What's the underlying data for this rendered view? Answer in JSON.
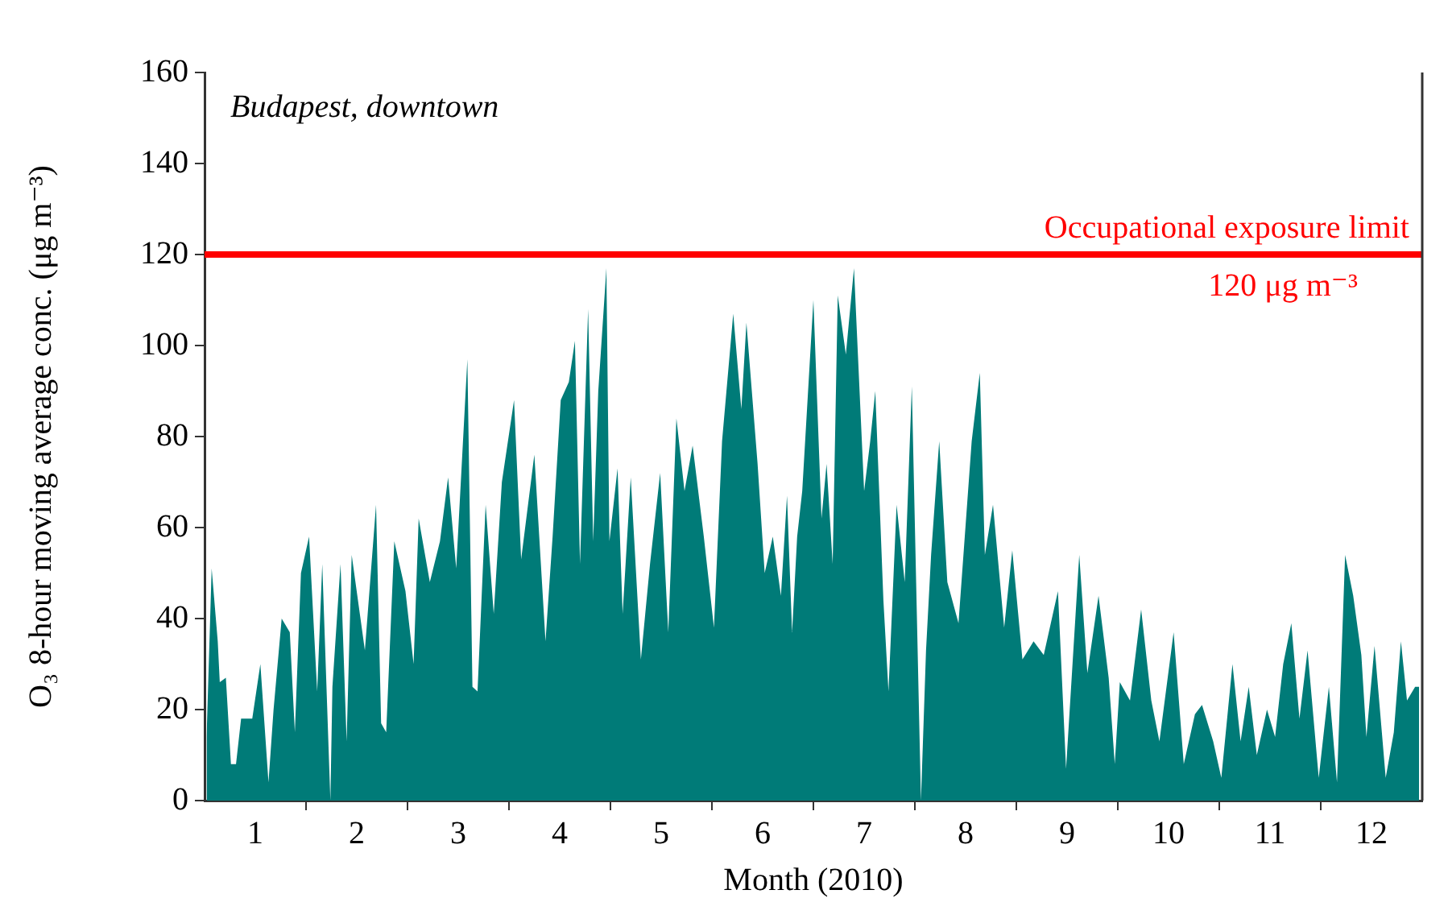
{
  "chart_data": {
    "type": "area",
    "ylabel": "O₃ 8-hour moving average conc. (μg m⁻³)",
    "xlabel": "Month (2010)",
    "annotations": [
      "Budapest, downtown",
      {
        "text": "120 μg m⁻³",
        "y": 120
      }
    ],
    "ref_lines": [
      {
        "axis": "y",
        "value": 120,
        "label": "Occupational exposure limit",
        "color": "#ff0000"
      }
    ],
    "color": "#007b78",
    "legend": false,
    "grid": false,
    "xlim": [
      0,
      12
    ],
    "xticks": [
      {
        "value": 0.5,
        "label": "1"
      },
      {
        "value": 1,
        "label": null
      },
      {
        "value": 1.5,
        "label": "2"
      },
      {
        "value": 2,
        "label": null
      },
      {
        "value": 2.5,
        "label": "3"
      },
      {
        "value": 3,
        "label": null
      },
      {
        "value": 3.5,
        "label": "4"
      },
      {
        "value": 4,
        "label": null
      },
      {
        "value": 4.5,
        "label": "5"
      },
      {
        "value": 5,
        "label": null
      },
      {
        "value": 5.5,
        "label": "6"
      },
      {
        "value": 6,
        "label": null
      },
      {
        "value": 6.5,
        "label": "7"
      },
      {
        "value": 7,
        "label": null
      },
      {
        "value": 7.5,
        "label": "8"
      },
      {
        "value": 8,
        "label": null
      },
      {
        "value": 8.5,
        "label": "9"
      },
      {
        "value": 9,
        "label": null
      },
      {
        "value": 9.5,
        "label": "10"
      },
      {
        "value": 10,
        "label": null
      },
      {
        "value": 10.5,
        "label": "11"
      },
      {
        "value": 11,
        "label": null
      },
      {
        "value": 11.5,
        "label": "12"
      }
    ],
    "ylim": [
      0,
      160
    ],
    "yticks": [
      0,
      20,
      40,
      60,
      80,
      100,
      120,
      140,
      160
    ],
    "x": [
      0.02,
      0.07,
      0.13,
      0.15,
      0.21,
      0.26,
      0.31,
      0.36,
      0.47,
      0.55,
      0.63,
      0.68,
      0.76,
      0.84,
      0.89,
      0.95,
      1.03,
      1.11,
      1.16,
      1.24,
      1.26,
      1.34,
      1.4,
      1.45,
      1.58,
      1.69,
      1.74,
      1.79,
      1.87,
      1.98,
      2.06,
      2.11,
      2.22,
      2.32,
      2.4,
      2.48,
      2.59,
      2.64,
      2.69,
      2.77,
      2.85,
      2.93,
      3.05,
      3.12,
      3.25,
      3.36,
      3.43,
      3.51,
      3.59,
      3.65,
      3.7,
      3.78,
      3.83,
      3.88,
      3.96,
      3.99,
      4.07,
      4.12,
      4.2,
      4.3,
      4.39,
      4.49,
      4.57,
      4.65,
      4.73,
      4.81,
      4.92,
      5.02,
      5.1,
      5.21,
      5.29,
      5.34,
      5.45,
      5.52,
      5.6,
      5.68,
      5.74,
      5.79,
      5.84,
      5.89,
      6.0,
      6.08,
      6.13,
      6.19,
      6.24,
      6.32,
      6.4,
      6.5,
      6.56,
      6.61,
      6.69,
      6.74,
      6.82,
      6.9,
      6.97,
      7.06,
      7.11,
      7.16,
      7.24,
      7.32,
      7.43,
      7.56,
      7.64,
      7.69,
      7.77,
      7.88,
      7.96,
      8.06,
      8.17,
      8.27,
      8.41,
      8.49,
      8.62,
      8.7,
      8.81,
      8.91,
      8.97,
      9.02,
      9.12,
      9.23,
      9.33,
      9.41,
      9.55,
      9.65,
      9.76,
      9.83,
      9.94,
      10.02,
      10.13,
      10.21,
      10.29,
      10.37,
      10.47,
      10.55,
      10.63,
      10.71,
      10.79,
      10.87,
      10.98,
      11.08,
      11.16,
      11.24,
      11.32,
      11.4,
      11.45,
      11.53,
      11.64,
      11.72,
      11.79,
      11.85,
      11.93,
      11.97
    ],
    "values": [
      14,
      51,
      35,
      26,
      27,
      8,
      8,
      18,
      18,
      30,
      4,
      20,
      40,
      37,
      15,
      50,
      58,
      24,
      52,
      0,
      25,
      52,
      13,
      54,
      33,
      65,
      17,
      15,
      57,
      46,
      30,
      62,
      48,
      57,
      71,
      51,
      97,
      25,
      24,
      65,
      41,
      70,
      88,
      53,
      76,
      35,
      58,
      88,
      92,
      101,
      52,
      108,
      57,
      90,
      117,
      57,
      73,
      41,
      71,
      31,
      52,
      72,
      37,
      84,
      68,
      78,
      58,
      38,
      79,
      107,
      86,
      105,
      74,
      50,
      58,
      45,
      67,
      37,
      58,
      68,
      110,
      62,
      74,
      52,
      111,
      98,
      117,
      68,
      79,
      90,
      44,
      24,
      65,
      48,
      91,
      0,
      33,
      54,
      79,
      48,
      39,
      79,
      94,
      54,
      65,
      38,
      55,
      31,
      35,
      32,
      46,
      7,
      54,
      28,
      45,
      27,
      8,
      26,
      22,
      42,
      22,
      13,
      37,
      8,
      19,
      21,
      13,
      5,
      30,
      13,
      25,
      10,
      20,
      14,
      30,
      39,
      18,
      33,
      5,
      25,
      4,
      54,
      45,
      32,
      14,
      34,
      5,
      15,
      35,
      22,
      25,
      25
    ]
  }
}
